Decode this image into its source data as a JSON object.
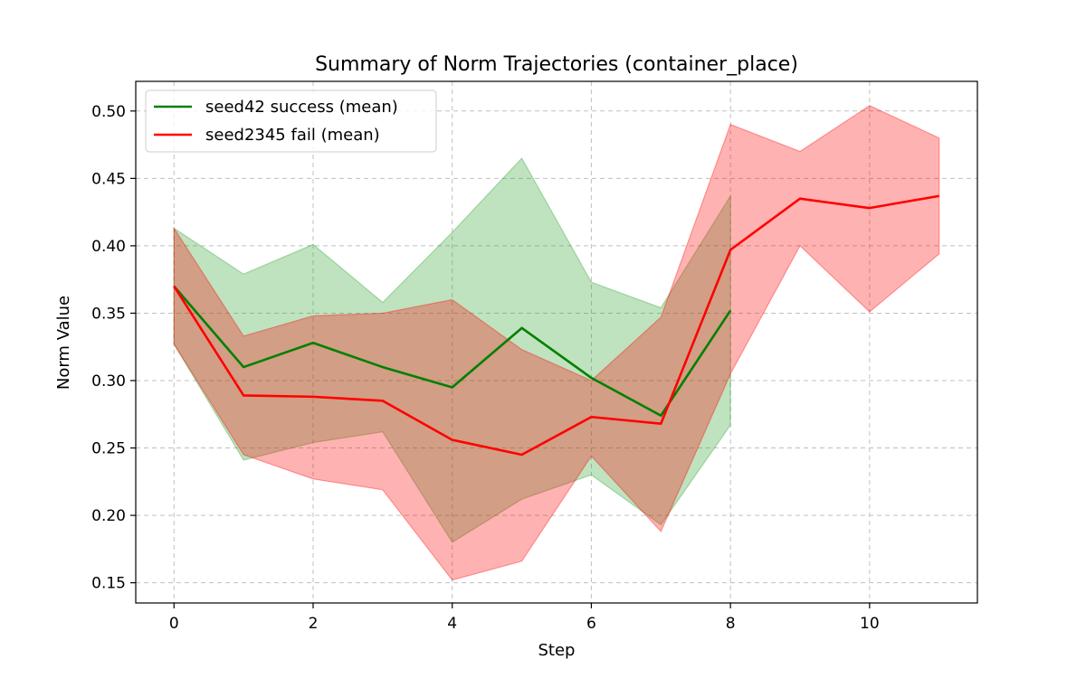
{
  "chart_data": {
    "type": "line",
    "title": "Summary of Norm Trajectories (container_place)",
    "xlabel": "Step",
    "ylabel": "Norm Value",
    "xlim": [
      -0.55,
      11.55
    ],
    "ylim": [
      0.135,
      0.522
    ],
    "xticks": [
      0,
      2,
      4,
      6,
      8,
      10
    ],
    "yticks": [
      0.15,
      0.2,
      0.25,
      0.3,
      0.35,
      0.4,
      0.45,
      0.5
    ],
    "grid": true,
    "legend_position": "upper-left",
    "series": [
      {
        "name": "seed42 success (mean)",
        "color": "#008000",
        "band_color": "#2ca02c",
        "x": [
          0,
          1,
          2,
          3,
          4,
          5,
          6,
          7,
          8
        ],
        "mean": [
          0.37,
          0.31,
          0.328,
          0.31,
          0.295,
          0.339,
          0.302,
          0.274,
          0.352
        ],
        "lower": [
          0.327,
          0.241,
          0.254,
          0.262,
          0.18,
          0.212,
          0.23,
          0.193,
          0.267
        ],
        "upper": [
          0.413,
          0.379,
          0.401,
          0.358,
          0.41,
          0.465,
          0.373,
          0.354,
          0.437
        ]
      },
      {
        "name": "seed2345 fail (mean)",
        "color": "#ff0000",
        "band_color": "#ff0000",
        "x": [
          0,
          1,
          2,
          3,
          4,
          5,
          6,
          7,
          8,
          9,
          10,
          11
        ],
        "mean": [
          0.37,
          0.289,
          0.288,
          0.285,
          0.256,
          0.245,
          0.273,
          0.268,
          0.397,
          0.435,
          0.428,
          0.437
        ],
        "lower": [
          0.327,
          0.245,
          0.227,
          0.219,
          0.152,
          0.166,
          0.244,
          0.188,
          0.305,
          0.4,
          0.351,
          0.394
        ],
        "upper": [
          0.413,
          0.333,
          0.348,
          0.35,
          0.36,
          0.323,
          0.3,
          0.347,
          0.49,
          0.47,
          0.504,
          0.48
        ]
      }
    ]
  }
}
